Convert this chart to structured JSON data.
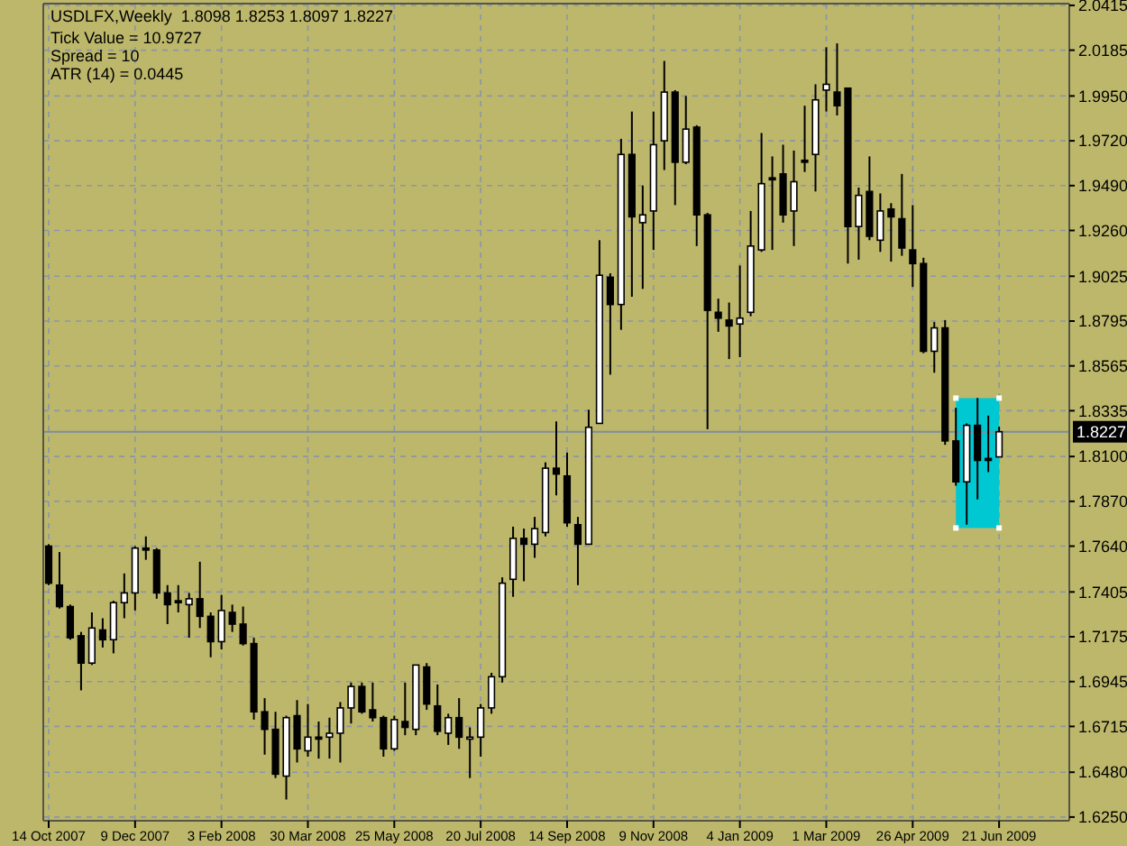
{
  "chart_data": {
    "type": "candlestick",
    "title": "USDLFX,Weekly  1.8098 1.8253 1.8097 1.8227",
    "annotations": [
      "Tick Value = 10.9727",
      "Spread = 10",
      "ATR (14) = 0.0445"
    ],
    "categories": [
      "14 Oct 2007",
      null,
      null,
      null,
      null,
      null,
      null,
      null,
      "9 Dec 2007",
      null,
      null,
      null,
      null,
      null,
      null,
      null,
      "3 Feb 2008",
      null,
      null,
      null,
      null,
      null,
      null,
      null,
      "30 Mar 2008",
      null,
      null,
      null,
      null,
      null,
      null,
      null,
      "25 May 2008",
      null,
      null,
      null,
      null,
      null,
      null,
      null,
      "20 Jul 2008",
      null,
      null,
      null,
      null,
      null,
      null,
      null,
      "14 Sep 2008",
      null,
      null,
      null,
      null,
      null,
      null,
      null,
      "9 Nov 2008",
      null,
      null,
      null,
      null,
      null,
      null,
      null,
      "4 Jan 2009",
      null,
      null,
      null,
      null,
      null,
      null,
      null,
      "1 Mar 2009",
      null,
      null,
      null,
      null,
      null,
      null,
      null,
      "26 Apr 2009",
      null,
      null,
      null,
      null,
      null,
      null,
      null,
      "21 Jun 2009"
    ],
    "ohlc": [
      [
        1.764,
        1.765,
        1.744,
        1.745
      ],
      [
        1.744,
        1.761,
        1.732,
        1.733
      ],
      [
        1.733,
        1.734,
        1.716,
        1.717
      ],
      [
        1.718,
        1.72,
        1.69,
        1.704
      ],
      [
        1.704,
        1.73,
        1.703,
        1.722
      ],
      [
        1.721,
        1.727,
        1.712,
        1.716
      ],
      [
        1.716,
        1.736,
        1.709,
        1.735
      ],
      [
        1.735,
        1.75,
        1.727,
        1.74
      ],
      [
        1.74,
        1.764,
        1.731,
        1.763
      ],
      [
        1.763,
        1.769,
        1.757,
        1.762
      ],
      [
        1.762,
        1.763,
        1.737,
        1.74
      ],
      [
        1.74,
        1.744,
        1.724,
        1.734
      ],
      [
        1.736,
        1.744,
        1.73,
        1.735
      ],
      [
        1.734,
        1.74,
        1.717,
        1.737
      ],
      [
        1.737,
        1.756,
        1.722,
        1.728
      ],
      [
        1.728,
        1.73,
        1.707,
        1.715
      ],
      [
        1.715,
        1.739,
        1.711,
        1.731
      ],
      [
        1.73,
        1.734,
        1.72,
        1.724
      ],
      [
        1.724,
        1.733,
        1.713,
        1.714
      ],
      [
        1.714,
        1.717,
        1.675,
        1.679
      ],
      [
        1.679,
        1.686,
        1.657,
        1.67
      ],
      [
        1.67,
        1.679,
        1.645,
        1.647
      ],
      [
        1.646,
        1.677,
        1.634,
        1.676
      ],
      [
        1.677,
        1.685,
        1.653,
        1.66
      ],
      [
        1.659,
        1.683,
        1.656,
        1.666
      ],
      [
        1.666,
        1.674,
        1.655,
        1.665
      ],
      [
        1.666,
        1.676,
        1.655,
        1.668
      ],
      [
        1.668,
        1.684,
        1.653,
        1.681
      ],
      [
        1.681,
        1.694,
        1.673,
        1.692
      ],
      [
        1.692,
        1.694,
        1.678,
        1.679
      ],
      [
        1.68,
        1.694,
        1.674,
        1.676
      ],
      [
        1.676,
        1.677,
        1.656,
        1.66
      ],
      [
        1.66,
        1.677,
        1.659,
        1.675
      ],
      [
        1.674,
        1.694,
        1.667,
        1.671
      ],
      [
        1.67,
        1.703,
        1.667,
        1.703
      ],
      [
        1.702,
        1.704,
        1.68,
        1.683
      ],
      [
        1.682,
        1.693,
        1.667,
        1.669
      ],
      [
        1.668,
        1.678,
        1.662,
        1.676
      ],
      [
        1.676,
        1.686,
        1.66,
        1.666
      ],
      [
        1.665,
        1.671,
        1.645,
        1.666
      ],
      [
        1.666,
        1.683,
        1.656,
        1.681
      ],
      [
        1.681,
        1.699,
        1.678,
        1.697
      ],
      [
        1.697,
        1.748,
        1.694,
        1.745
      ],
      [
        1.747,
        1.774,
        1.738,
        1.768
      ],
      [
        1.768,
        1.773,
        1.746,
        1.765
      ],
      [
        1.765,
        1.779,
        1.758,
        1.773
      ],
      [
        1.771,
        1.807,
        1.769,
        1.804
      ],
      [
        1.804,
        1.828,
        1.79,
        1.801
      ],
      [
        1.8,
        1.812,
        1.774,
        1.776
      ],
      [
        1.775,
        1.779,
        1.744,
        1.765
      ],
      [
        1.765,
        1.834,
        1.765,
        1.825
      ],
      [
        1.827,
        1.921,
        1.827,
        1.903
      ],
      [
        1.902,
        1.904,
        1.852,
        1.888
      ],
      [
        1.888,
        1.973,
        1.875,
        1.965
      ],
      [
        1.965,
        1.987,
        1.892,
        1.933
      ],
      [
        1.93,
        1.949,
        1.896,
        1.934
      ],
      [
        1.936,
        1.987,
        1.916,
        1.97
      ],
      [
        1.972,
        2.013,
        1.957,
        1.997
      ],
      [
        1.997,
        1.998,
        1.939,
        1.961
      ],
      [
        1.961,
        1.995,
        1.96,
        1.978
      ],
      [
        1.979,
        1.98,
        1.918,
        1.934
      ],
      [
        1.934,
        1.935,
        1.824,
        1.885
      ],
      [
        1.884,
        1.891,
        1.874,
        1.881
      ],
      [
        1.88,
        1.889,
        1.86,
        1.877
      ],
      [
        1.878,
        1.908,
        1.861,
        1.881
      ],
      [
        1.884,
        1.936,
        1.882,
        1.918
      ],
      [
        1.916,
        1.976,
        1.915,
        1.95
      ],
      [
        1.953,
        1.964,
        1.916,
        1.952
      ],
      [
        1.955,
        1.97,
        1.93,
        1.934
      ],
      [
        1.936,
        1.967,
        1.918,
        1.951
      ],
      [
        1.962,
        1.99,
        1.956,
        1.961
      ],
      [
        1.965,
        2.001,
        1.946,
        1.993
      ],
      [
        1.998,
        2.02,
        1.987,
        2.001
      ],
      [
        1.997,
        2.022,
        1.985,
        1.99
      ],
      [
        1.999,
        1.999,
        1.909,
        1.928
      ],
      [
        1.928,
        1.948,
        1.911,
        1.944
      ],
      [
        1.946,
        1.964,
        1.921,
        1.923
      ],
      [
        1.921,
        1.945,
        1.915,
        1.936
      ],
      [
        1.937,
        1.94,
        1.91,
        1.933
      ],
      [
        1.932,
        1.955,
        1.913,
        1.917
      ],
      [
        1.916,
        1.939,
        1.897,
        1.909
      ],
      [
        1.909,
        1.912,
        1.863,
        1.864
      ],
      [
        1.864,
        1.879,
        1.853,
        1.876
      ],
      [
        1.876,
        1.88,
        1.816,
        1.818
      ],
      [
        1.818,
        1.835,
        1.795,
        1.797
      ],
      [
        1.797,
        1.827,
        1.775,
        1.826
      ],
      [
        1.826,
        1.84,
        1.788,
        1.808
      ],
      [
        1.809,
        1.831,
        1.802,
        1.808
      ],
      [
        1.8098,
        1.8253,
        1.8097,
        1.8227
      ]
    ],
    "color": "#000000",
    "ylim": [
      1.6231,
      2.0424
    ],
    "yticks": [
      {
        "value": 2.0415,
        "label": "2.0415"
      },
      {
        "value": 2.0185,
        "label": "2.0185"
      },
      {
        "value": 1.995,
        "label": "1.9950"
      },
      {
        "value": 1.972,
        "label": "1.9720"
      },
      {
        "value": 1.949,
        "label": "1.9490"
      },
      {
        "value": 1.926,
        "label": "1.9260"
      },
      {
        "value": 1.9025,
        "label": "1.9025"
      },
      {
        "value": 1.8795,
        "label": "1.8795"
      },
      {
        "value": 1.8565,
        "label": "1.8565"
      },
      {
        "value": 1.8335,
        "label": "1.8335"
      },
      {
        "value": 1.81,
        "label": "1.8100"
      },
      {
        "value": 1.787,
        "label": "1.7870"
      },
      {
        "value": 1.764,
        "label": "1.7640"
      },
      {
        "value": 1.7405,
        "label": "1.7405"
      },
      {
        "value": 1.7175,
        "label": "1.7175"
      },
      {
        "value": 1.6945,
        "label": "1.6945"
      },
      {
        "value": 1.6715,
        "label": "1.6715"
      },
      {
        "value": 1.648,
        "label": "1.6480"
      },
      {
        "value": 1.625,
        "label": "1.6250"
      }
    ],
    "grid": true,
    "ref_lines": [
      {
        "axis": "y",
        "value": 1.8227,
        "label": "1.8227",
        "color": "#7f8ca0"
      }
    ]
  }
}
